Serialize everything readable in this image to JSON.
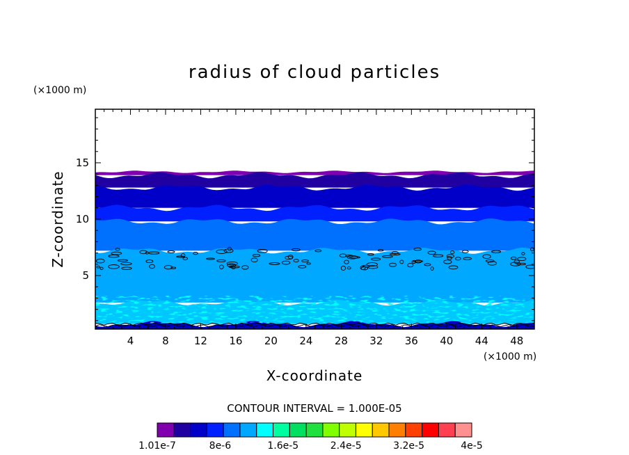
{
  "chart_data": {
    "type": "heatmap",
    "title": "radius of cloud particles",
    "xlabel": "X-coordinate",
    "ylabel": "Z-coordinate",
    "x_unit": "(×1000 m)",
    "y_unit": "(×1000 m)",
    "xlim": [
      0,
      50
    ],
    "ylim": [
      0.25,
      19.75
    ],
    "x_ticks": [
      4,
      8,
      12,
      16,
      20,
      24,
      28,
      32,
      36,
      40,
      44,
      48
    ],
    "x_tick_labels": [
      "4",
      "8",
      "12",
      "16",
      "20",
      "24",
      "28",
      "32",
      "36",
      "40",
      "44",
      "48"
    ],
    "y_ticks": [
      5,
      10,
      15
    ],
    "y_tick_labels": [
      "5",
      "10",
      "15"
    ],
    "contour_interval_text": "CONTOUR INTERVAL = 1.000E-05",
    "colorbar": {
      "colors": [
        "#8000b0",
        "#2000a0",
        "#0000c8",
        "#0020ff",
        "#0070ff",
        "#00a8ff",
        "#00ffff",
        "#00ffa0",
        "#00e060",
        "#20e040",
        "#80ff00",
        "#c0ff00",
        "#ffff00",
        "#ffc800",
        "#ff8000",
        "#ff4000",
        "#ff0000",
        "#ff4050",
        "#ff9090"
      ],
      "labels": [
        "1.01e-7",
        "8e-6",
        "1.6e-5",
        "2.4e-5",
        "3.2e-5",
        "4e-5"
      ]
    },
    "layers": [
      {
        "z_bottom": 13.9,
        "z_top": 14.2,
        "color": "#8000b0"
      },
      {
        "z_bottom": 12.8,
        "z_top": 13.9,
        "color": "#2000a0"
      },
      {
        "z_bottom": 11.0,
        "z_top": 12.8,
        "color": "#0000c8"
      },
      {
        "z_bottom": 9.8,
        "z_top": 11.0,
        "color": "#0020ff"
      },
      {
        "z_bottom": 7.2,
        "z_top": 9.8,
        "color": "#0070ff"
      },
      {
        "z_bottom": 2.6,
        "z_top": 7.2,
        "color": "#00a8ff"
      },
      {
        "z_bottom": 0.7,
        "z_top": 2.6,
        "color": "#00c8ff"
      },
      {
        "z_bottom": 0.25,
        "z_top": 0.7,
        "color": "#0000c8"
      }
    ]
  }
}
